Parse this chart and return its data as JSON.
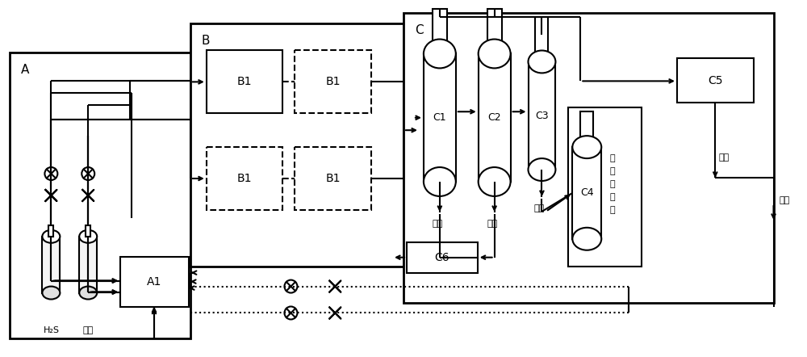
{
  "bg": "#ffffff",
  "lc": "#000000",
  "lw": 1.5,
  "lw2": 2.0,
  "fw": 10.0,
  "fh": 4.42,
  "dpi": 100,
  "labels": {
    "A": "A",
    "B": "B",
    "C": "C",
    "A1": "A1",
    "B1": "B1",
    "C1": "C1",
    "C2": "C2",
    "C3": "C3",
    "C4": "C4",
    "C5": "C5",
    "C6": "C6",
    "h2s": "H₂S",
    "carrier": "载气",
    "liquid_s": "液硫",
    "solid_s": "固硫",
    "amine": "胺液",
    "desorb": "解吸硫化氢",
    "carrier2": "载气",
    "h2": "氢气"
  }
}
